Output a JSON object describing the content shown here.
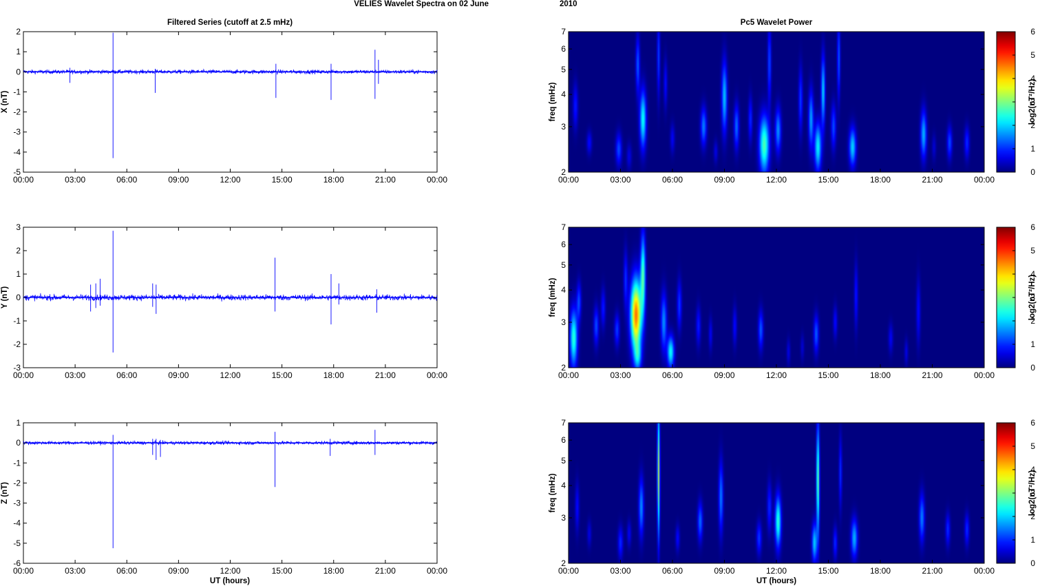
{
  "figure": {
    "suptitle_a": "VELIES Wavelet Spectra on 02 June",
    "suptitle_b": "2010",
    "left_title": "Filtered Series (cutoff at 2.5 mHz)",
    "right_title": "Pc5 Wavelet Power",
    "xlabel": "UT (hours)",
    "time_ticks": [
      "00:00",
      "03:00",
      "06:00",
      "09:00",
      "12:00",
      "15:00",
      "18:00",
      "21:00",
      "00:00"
    ],
    "freq_label": "freq (mHz)",
    "freq_ticks": [
      "2",
      "3",
      "4",
      "5",
      "6",
      "7"
    ],
    "colorbar_label": "log2(nT²/Hz)",
    "colorbar_ticks": [
      "0",
      "1",
      "2",
      "3",
      "4",
      "5",
      "6"
    ]
  },
  "chart_data": [
    {
      "type": "line",
      "ylabel": "X (nT)",
      "xlim": [
        0,
        24
      ],
      "ylim": [
        -5,
        2
      ],
      "yticks": [
        "-5",
        "-4",
        "-3",
        "-2",
        "-1",
        "0",
        "1",
        "2"
      ],
      "series_color": "#0000ff",
      "noise_amplitude": 0.08,
      "spikes": [
        {
          "x": 2.7,
          "ymin": -0.55,
          "ymax": 0.2
        },
        {
          "x": 5.2,
          "ymin": -4.3,
          "ymax": 1.95
        },
        {
          "x": 7.65,
          "ymin": -1.05,
          "ymax": 0.15
        },
        {
          "x": 14.65,
          "ymin": -1.3,
          "ymax": 0.4
        },
        {
          "x": 17.85,
          "ymin": -1.4,
          "ymax": 0.4
        },
        {
          "x": 20.4,
          "ymin": -1.35,
          "ymax": 1.1
        },
        {
          "x": 20.6,
          "ymin": -0.6,
          "ymax": 0.6
        }
      ]
    },
    {
      "type": "line",
      "ylabel": "Y (nT)",
      "xlim": [
        0,
        24
      ],
      "ylim": [
        -3,
        3
      ],
      "yticks": [
        "-3",
        "-2",
        "-1",
        "0",
        "1",
        "2",
        "3"
      ],
      "series_color": "#0000ff",
      "noise_amplitude": 0.1,
      "spikes": [
        {
          "x": 3.9,
          "ymin": -0.6,
          "ymax": 0.55
        },
        {
          "x": 4.2,
          "ymin": -0.45,
          "ymax": 0.6
        },
        {
          "x": 4.45,
          "ymin": -0.35,
          "ymax": 0.8
        },
        {
          "x": 5.2,
          "ymin": -2.35,
          "ymax": 2.85
        },
        {
          "x": 7.5,
          "ymin": -0.4,
          "ymax": 0.6
        },
        {
          "x": 7.7,
          "ymin": -0.7,
          "ymax": 0.55
        },
        {
          "x": 14.6,
          "ymin": -0.6,
          "ymax": 1.7
        },
        {
          "x": 17.85,
          "ymin": -1.15,
          "ymax": 1.0
        },
        {
          "x": 18.3,
          "ymin": -0.3,
          "ymax": 0.6
        },
        {
          "x": 20.5,
          "ymin": -0.65,
          "ymax": 0.35
        }
      ]
    },
    {
      "type": "line",
      "ylabel": "Z (nT)",
      "xlim": [
        0,
        24
      ],
      "ylim": [
        -6,
        1
      ],
      "yticks": [
        "-6",
        "-5",
        "-4",
        "-3",
        "-2",
        "-1",
        "0",
        "1"
      ],
      "series_color": "#0000ff",
      "noise_amplitude": 0.07,
      "spikes": [
        {
          "x": 5.2,
          "ymin": -5.25,
          "ymax": 0.4
        },
        {
          "x": 7.5,
          "ymin": -0.6,
          "ymax": 0.2
        },
        {
          "x": 7.7,
          "ymin": -0.85,
          "ymax": 0.2
        },
        {
          "x": 7.95,
          "ymin": -0.7,
          "ymax": 0.15
        },
        {
          "x": 14.6,
          "ymin": -2.2,
          "ymax": 0.55
        },
        {
          "x": 17.8,
          "ymin": -0.65,
          "ymax": 0.2
        },
        {
          "x": 20.4,
          "ymin": -0.6,
          "ymax": 0.65
        }
      ]
    },
    {
      "type": "heatmap",
      "title": "Pc5 Wavelet Power",
      "xlim": [
        0,
        24
      ],
      "ylim_mhz": [
        2,
        7
      ],
      "y_scale": "log",
      "clim": [
        0,
        6
      ],
      "colormap": "jet",
      "blobs": [
        {
          "t": 0.4,
          "f": 3.6,
          "p": 0.9,
          "w": 0.1,
          "fs": 0.14
        },
        {
          "t": 1.2,
          "f": 2.6,
          "p": 0.8,
          "w": 0.1,
          "fs": 0.07
        },
        {
          "t": 2.9,
          "f": 2.45,
          "p": 1.2,
          "w": 0.12,
          "fs": 0.1
        },
        {
          "t": 3.5,
          "f": 2.3,
          "p": 0.6,
          "w": 0.1,
          "fs": 0.08
        },
        {
          "t": 4.0,
          "f": 5.2,
          "p": 1.3,
          "w": 0.08,
          "fs": 0.18
        },
        {
          "t": 4.3,
          "f": 3.2,
          "p": 2.3,
          "w": 0.13,
          "fs": 0.18
        },
        {
          "t": 5.2,
          "f": 5.6,
          "p": 1.1,
          "w": 0.06,
          "fs": 0.25
        },
        {
          "t": 5.6,
          "f": 4.4,
          "p": 0.8,
          "w": 0.07,
          "fs": 0.15
        },
        {
          "t": 6.0,
          "f": 2.7,
          "p": 0.7,
          "w": 0.09,
          "fs": 0.09
        },
        {
          "t": 7.8,
          "f": 3.0,
          "p": 1.5,
          "w": 0.12,
          "fs": 0.12
        },
        {
          "t": 8.5,
          "f": 2.4,
          "p": 0.6,
          "w": 0.08,
          "fs": 0.07
        },
        {
          "t": 9.0,
          "f": 3.9,
          "p": 1.9,
          "w": 0.11,
          "fs": 0.22
        },
        {
          "t": 9.7,
          "f": 3.0,
          "p": 1.4,
          "w": 0.1,
          "fs": 0.14
        },
        {
          "t": 10.5,
          "f": 3.2,
          "p": 1.0,
          "w": 0.08,
          "fs": 0.14
        },
        {
          "t": 11.3,
          "f": 2.55,
          "p": 2.7,
          "w": 0.2,
          "fs": 0.18
        },
        {
          "t": 11.6,
          "f": 5.3,
          "p": 1.2,
          "w": 0.07,
          "fs": 0.25
        },
        {
          "t": 12.1,
          "f": 2.9,
          "p": 1.6,
          "w": 0.12,
          "fs": 0.14
        },
        {
          "t": 13.4,
          "f": 3.8,
          "p": 1.1,
          "w": 0.08,
          "fs": 0.2
        },
        {
          "t": 14.0,
          "f": 3.2,
          "p": 1.7,
          "w": 0.1,
          "fs": 0.18
        },
        {
          "t": 14.4,
          "f": 2.5,
          "p": 2.2,
          "w": 0.14,
          "fs": 0.15
        },
        {
          "t": 14.7,
          "f": 4.1,
          "p": 2.0,
          "w": 0.08,
          "fs": 0.22
        },
        {
          "t": 15.3,
          "f": 3.0,
          "p": 1.2,
          "w": 0.1,
          "fs": 0.14
        },
        {
          "t": 15.6,
          "f": 5.5,
          "p": 1.3,
          "w": 0.06,
          "fs": 0.25
        },
        {
          "t": 16.4,
          "f": 2.5,
          "p": 2.0,
          "w": 0.14,
          "fs": 0.12
        },
        {
          "t": 20.5,
          "f": 2.8,
          "p": 1.8,
          "w": 0.12,
          "fs": 0.15
        },
        {
          "t": 21.1,
          "f": 2.5,
          "p": 0.5,
          "w": 0.08,
          "fs": 0.08
        },
        {
          "t": 22.0,
          "f": 2.6,
          "p": 1.2,
          "w": 0.1,
          "fs": 0.1
        },
        {
          "t": 23.0,
          "f": 2.6,
          "p": 1.0,
          "w": 0.1,
          "fs": 0.1
        }
      ]
    },
    {
      "type": "heatmap",
      "title": "",
      "xlim": [
        0,
        24
      ],
      "ylim_mhz": [
        2,
        7
      ],
      "y_scale": "log",
      "clim": [
        0,
        6
      ],
      "colormap": "jet",
      "blobs": [
        {
          "t": 0.3,
          "f": 2.6,
          "p": 2.5,
          "w": 0.15,
          "fs": 0.18
        },
        {
          "t": 0.6,
          "f": 3.6,
          "p": 1.2,
          "w": 0.09,
          "fs": 0.12
        },
        {
          "t": 1.6,
          "f": 2.9,
          "p": 1.2,
          "w": 0.1,
          "fs": 0.12
        },
        {
          "t": 2.0,
          "f": 3.4,
          "p": 0.9,
          "w": 0.09,
          "fs": 0.12
        },
        {
          "t": 2.8,
          "f": 2.8,
          "p": 1.1,
          "w": 0.1,
          "fs": 0.1
        },
        {
          "t": 3.3,
          "f": 4.4,
          "p": 1.0,
          "w": 0.08,
          "fs": 0.18
        },
        {
          "t": 3.9,
          "f": 3.2,
          "p": 4.6,
          "w": 0.22,
          "fs": 0.22
        },
        {
          "t": 4.3,
          "f": 4.6,
          "p": 2.6,
          "w": 0.1,
          "fs": 0.25
        },
        {
          "t": 4.0,
          "f": 2.2,
          "p": 1.5,
          "w": 0.15,
          "fs": 0.09
        },
        {
          "t": 5.5,
          "f": 3.0,
          "p": 1.6,
          "w": 0.12,
          "fs": 0.18
        },
        {
          "t": 5.9,
          "f": 2.3,
          "p": 2.3,
          "w": 0.14,
          "fs": 0.1
        },
        {
          "t": 6.4,
          "f": 3.5,
          "p": 1.1,
          "w": 0.09,
          "fs": 0.15
        },
        {
          "t": 7.5,
          "f": 2.9,
          "p": 0.9,
          "w": 0.09,
          "fs": 0.12
        },
        {
          "t": 8.2,
          "f": 2.7,
          "p": 0.7,
          "w": 0.07,
          "fs": 0.1
        },
        {
          "t": 9.6,
          "f": 2.9,
          "p": 0.8,
          "w": 0.08,
          "fs": 0.12
        },
        {
          "t": 11.1,
          "f": 2.8,
          "p": 1.3,
          "w": 0.1,
          "fs": 0.12
        },
        {
          "t": 12.7,
          "f": 2.3,
          "p": 0.6,
          "w": 0.07,
          "fs": 0.08
        },
        {
          "t": 13.5,
          "f": 2.4,
          "p": 0.5,
          "w": 0.07,
          "fs": 0.08
        },
        {
          "t": 14.3,
          "f": 2.7,
          "p": 1.3,
          "w": 0.1,
          "fs": 0.12
        },
        {
          "t": 15.4,
          "f": 3.0,
          "p": 0.8,
          "w": 0.08,
          "fs": 0.1
        },
        {
          "t": 16.6,
          "f": 3.8,
          "p": 0.9,
          "w": 0.07,
          "fs": 0.2
        },
        {
          "t": 18.6,
          "f": 2.6,
          "p": 0.7,
          "w": 0.09,
          "fs": 0.09
        },
        {
          "t": 19.5,
          "f": 2.3,
          "p": 0.6,
          "w": 0.07,
          "fs": 0.08
        },
        {
          "t": 20.2,
          "f": 3.3,
          "p": 0.8,
          "w": 0.08,
          "fs": 0.2
        }
      ]
    },
    {
      "type": "heatmap",
      "title": "",
      "xlim": [
        0,
        24
      ],
      "ylim_mhz": [
        2,
        7
      ],
      "y_scale": "log",
      "clim": [
        0,
        6
      ],
      "colormap": "jet",
      "blobs": [
        {
          "t": 0.5,
          "f": 3.3,
          "p": 0.8,
          "w": 0.08,
          "fs": 0.15
        },
        {
          "t": 1.2,
          "f": 2.6,
          "p": 0.6,
          "w": 0.08,
          "fs": 0.08
        },
        {
          "t": 3.0,
          "f": 2.4,
          "p": 1.0,
          "w": 0.1,
          "fs": 0.1
        },
        {
          "t": 3.5,
          "f": 2.6,
          "p": 0.7,
          "w": 0.08,
          "fs": 0.08
        },
        {
          "t": 4.2,
          "f": 3.3,
          "p": 1.6,
          "w": 0.1,
          "fs": 0.18
        },
        {
          "t": 5.2,
          "f": 4.5,
          "p": 3.3,
          "w": 0.05,
          "fs": 0.4
        },
        {
          "t": 6.3,
          "f": 2.5,
          "p": 0.8,
          "w": 0.08,
          "fs": 0.08
        },
        {
          "t": 7.6,
          "f": 2.9,
          "p": 1.4,
          "w": 0.1,
          "fs": 0.12
        },
        {
          "t": 8.8,
          "f": 3.6,
          "p": 1.5,
          "w": 0.09,
          "fs": 0.22
        },
        {
          "t": 11.0,
          "f": 2.5,
          "p": 1.1,
          "w": 0.1,
          "fs": 0.1
        },
        {
          "t": 11.6,
          "f": 3.3,
          "p": 1.0,
          "w": 0.09,
          "fs": 0.15
        },
        {
          "t": 12.1,
          "f": 2.9,
          "p": 2.5,
          "w": 0.12,
          "fs": 0.16
        },
        {
          "t": 14.4,
          "f": 4.2,
          "p": 2.9,
          "w": 0.06,
          "fs": 0.35
        },
        {
          "t": 14.2,
          "f": 2.4,
          "p": 2.0,
          "w": 0.1,
          "fs": 0.12
        },
        {
          "t": 15.4,
          "f": 2.4,
          "p": 1.0,
          "w": 0.08,
          "fs": 0.1
        },
        {
          "t": 15.7,
          "f": 4.5,
          "p": 1.0,
          "w": 0.06,
          "fs": 0.22
        },
        {
          "t": 16.5,
          "f": 2.5,
          "p": 1.8,
          "w": 0.13,
          "fs": 0.12
        },
        {
          "t": 20.4,
          "f": 3.0,
          "p": 1.5,
          "w": 0.11,
          "fs": 0.15
        },
        {
          "t": 21.9,
          "f": 2.7,
          "p": 1.0,
          "w": 0.09,
          "fs": 0.1
        },
        {
          "t": 23.0,
          "f": 2.7,
          "p": 1.0,
          "w": 0.09,
          "fs": 0.1
        }
      ]
    }
  ]
}
